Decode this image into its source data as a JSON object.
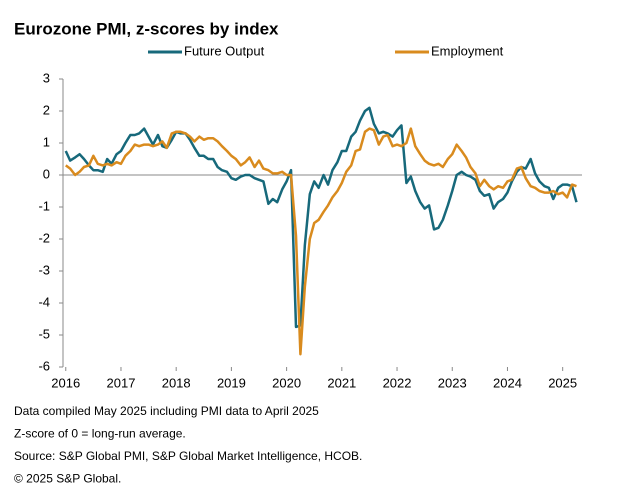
{
  "chart_data": {
    "type": "line",
    "title": "Eurozone PMI, z-scores by index",
    "x": [
      2016,
      2016.08,
      2016.17,
      2016.25,
      2016.33,
      2016.42,
      2016.5,
      2016.58,
      2016.67,
      2016.75,
      2016.83,
      2016.92,
      2017,
      2017.08,
      2017.17,
      2017.25,
      2017.33,
      2017.42,
      2017.5,
      2017.58,
      2017.67,
      2017.75,
      2017.83,
      2017.92,
      2018,
      2018.08,
      2018.17,
      2018.25,
      2018.33,
      2018.42,
      2018.5,
      2018.58,
      2018.67,
      2018.75,
      2018.83,
      2018.92,
      2019,
      2019.08,
      2019.17,
      2019.25,
      2019.33,
      2019.42,
      2019.5,
      2019.58,
      2019.67,
      2019.75,
      2019.83,
      2019.92,
      2020,
      2020.08,
      2020.17,
      2020.25,
      2020.33,
      2020.42,
      2020.5,
      2020.58,
      2020.67,
      2020.75,
      2020.83,
      2020.92,
      2021,
      2021.08,
      2021.17,
      2021.25,
      2021.33,
      2021.42,
      2021.5,
      2021.58,
      2021.67,
      2021.75,
      2021.83,
      2021.92,
      2022,
      2022.08,
      2022.17,
      2022.25,
      2022.33,
      2022.42,
      2022.5,
      2022.58,
      2022.67,
      2022.75,
      2022.83,
      2022.92,
      2023,
      2023.08,
      2023.17,
      2023.25,
      2023.33,
      2023.42,
      2023.5,
      2023.58,
      2023.67,
      2023.75,
      2023.83,
      2023.92,
      2024,
      2024.08,
      2024.17,
      2024.25,
      2024.33,
      2024.42,
      2024.5,
      2024.58,
      2024.67,
      2024.75,
      2024.83,
      2024.92,
      2025,
      2025.08,
      2025.17,
      2025.25
    ],
    "series": [
      {
        "name": "Future Output",
        "color": "#17697b",
        "values": [
          0.75,
          0.45,
          0.55,
          0.65,
          0.5,
          0.3,
          0.15,
          0.15,
          0.1,
          0.5,
          0.35,
          0.65,
          0.75,
          1.0,
          1.25,
          1.25,
          1.3,
          1.45,
          1.2,
          0.95,
          1.25,
          0.9,
          0.85,
          1.1,
          1.35,
          1.3,
          1.3,
          1.1,
          0.85,
          0.6,
          0.6,
          0.5,
          0.5,
          0.25,
          0.15,
          0.1,
          -0.1,
          -0.15,
          -0.05,
          0.0,
          0.0,
          -0.1,
          -0.15,
          -0.2,
          -0.9,
          -0.75,
          -0.85,
          -0.45,
          -0.2,
          0.15,
          -4.75,
          -4.7,
          -2.2,
          -0.6,
          -0.2,
          -0.4,
          0.0,
          -0.3,
          0.15,
          0.4,
          0.75,
          0.75,
          1.2,
          1.35,
          1.7,
          2.0,
          2.1,
          1.6,
          1.3,
          1.35,
          1.3,
          1.2,
          1.4,
          1.55,
          -0.25,
          -0.05,
          -0.5,
          -0.85,
          -1.05,
          -0.95,
          -1.7,
          -1.65,
          -1.4,
          -0.95,
          -0.5,
          0.0,
          0.1,
          0.0,
          -0.05,
          -0.15,
          -0.5,
          -0.65,
          -0.6,
          -1.05,
          -0.85,
          -0.75,
          -0.55,
          -0.2,
          0.1,
          0.25,
          0.2,
          0.5,
          0.05,
          -0.2,
          -0.35,
          -0.4,
          -0.75,
          -0.4,
          -0.3,
          -0.3,
          -0.35,
          -0.85
        ]
      },
      {
        "name": "Employment",
        "color": "#d98b1e",
        "values": [
          0.3,
          0.2,
          0.0,
          0.1,
          0.25,
          0.3,
          0.6,
          0.35,
          0.3,
          0.35,
          0.3,
          0.4,
          0.35,
          0.6,
          0.75,
          0.95,
          0.9,
          0.95,
          0.95,
          0.9,
          0.95,
          1.05,
          0.85,
          1.3,
          1.35,
          1.35,
          1.3,
          1.2,
          1.05,
          1.2,
          1.1,
          1.15,
          1.15,
          1.05,
          0.9,
          0.75,
          0.6,
          0.5,
          0.3,
          0.4,
          0.55,
          0.25,
          0.45,
          0.2,
          0.15,
          0.05,
          0.05,
          0.1,
          0.0,
          0.0,
          -1.9,
          -5.6,
          -3.5,
          -2.0,
          -1.5,
          -1.4,
          -1.15,
          -0.95,
          -0.7,
          -0.5,
          -0.25,
          0.1,
          0.3,
          0.75,
          0.8,
          1.35,
          1.45,
          1.4,
          0.95,
          1.2,
          1.25,
          0.9,
          0.95,
          0.9,
          1.0,
          1.45,
          0.9,
          0.65,
          0.45,
          0.35,
          0.3,
          0.35,
          0.25,
          0.5,
          0.65,
          0.95,
          0.75,
          0.55,
          0.25,
          0.05,
          -0.35,
          -0.15,
          -0.35,
          -0.45,
          -0.35,
          -0.4,
          -0.2,
          -0.15,
          0.2,
          0.25,
          -0.1,
          -0.35,
          -0.4,
          -0.5,
          -0.55,
          -0.55,
          -0.5,
          -0.6,
          -0.55,
          -0.7,
          -0.3,
          -0.35
        ]
      }
    ],
    "xlim": [
      2015.95,
      2025.35
    ],
    "xticks": [
      2016,
      2017,
      2018,
      2019,
      2020,
      2021,
      2022,
      2023,
      2024,
      2025
    ],
    "ylim": [
      -6,
      3
    ],
    "yticks": [
      -6,
      -5,
      -4,
      -3,
      -2,
      -1,
      0,
      1,
      2,
      3
    ],
    "notes": [
      "Data compiled May 2025 including PMI data to April 2025",
      "Z-score of 0 = long-run average.",
      "Source: S&P Global PMI, S&P Global Market Intelligence, HCOB.",
      "© 2025 S&P Global."
    ]
  }
}
